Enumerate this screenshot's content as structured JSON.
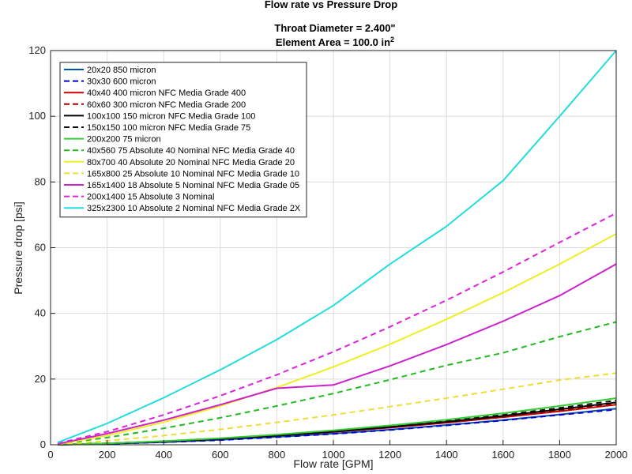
{
  "chart_data": {
    "type": "line",
    "title": "Flow rate vs Pressure Drop",
    "subtitle_line1": "Throat Diameter =  2.400\"",
    "subtitle_line2_prefix": "Element Area = 100.0 in",
    "subtitle_line2_sup": "2",
    "xlabel": "Flow rate [GPM]",
    "ylabel": "Pressure drop [psi]",
    "xlim": [
      0,
      2000
    ],
    "ylim": [
      0,
      120
    ],
    "xticks": [
      "0",
      "200",
      "400",
      "600",
      "800",
      "1000",
      "1200",
      "1400",
      "1600",
      "1800",
      "2000"
    ],
    "yticks": [
      "0",
      "20",
      "40",
      "60",
      "80",
      "100",
      "120"
    ],
    "grid": true,
    "legend_position": "top-left",
    "x": [
      25,
      200,
      400,
      600,
      800,
      1000,
      1200,
      1400,
      1600,
      1800,
      2000
    ],
    "series": [
      {
        "name": "20x20 850 micron",
        "color": "#0055aa",
        "style": "solid",
        "values": [
          0.02,
          0.3,
          0.8,
          1.5,
          2.4,
          3.4,
          4.6,
          6.0,
          7.5,
          9.2,
          11.0
        ]
      },
      {
        "name": "30x30 600 micron",
        "color": "#0000cc",
        "style": "dashed",
        "values": [
          0.02,
          0.3,
          0.8,
          1.4,
          2.3,
          3.3,
          4.5,
          5.9,
          7.4,
          9.1,
          10.7
        ]
      },
      {
        "name": "40x40 400 micron NFC Media Grade 400",
        "color": "#cc0000",
        "style": "solid",
        "values": [
          0.03,
          0.4,
          1.0,
          1.8,
          2.8,
          3.9,
          5.2,
          6.7,
          8.4,
          10.2,
          12.2
        ]
      },
      {
        "name": "60x60 300 micron NFC Media Grade 200",
        "color": "#aa0000",
        "style": "dashed",
        "values": [
          0.03,
          0.4,
          1.0,
          1.8,
          2.8,
          3.9,
          5.3,
          6.8,
          8.5,
          10.4,
          12.5
        ]
      },
      {
        "name": "100x100 150 micron NFC Media Grade 100",
        "color": "#000000",
        "style": "solid",
        "values": [
          0.03,
          0.4,
          1.0,
          1.8,
          2.8,
          4.0,
          5.4,
          7.0,
          8.8,
          10.8,
          12.9
        ]
      },
      {
        "name": "150x150 100 micron NFC Media Grade 75",
        "color": "#111111",
        "style": "dashed",
        "values": [
          0.03,
          0.4,
          1.0,
          1.9,
          2.9,
          4.1,
          5.6,
          7.2,
          9.1,
          11.2,
          13.5
        ]
      },
      {
        "name": "200x200 75 micron",
        "color": "#33cc33",
        "style": "solid",
        "values": [
          0.03,
          0.4,
          1.1,
          2.0,
          3.1,
          4.4,
          5.9,
          7.6,
          9.6,
          11.8,
          14.2
        ]
      },
      {
        "name": "40x560 75 Absolute 40 Nominal NFC Media Grade 40",
        "color": "#22bb22",
        "style": "dashed",
        "values": [
          0.2,
          2.2,
          5.0,
          8.2,
          11.8,
          15.6,
          19.8,
          24.2,
          28.0,
          32.9,
          37.4
        ]
      },
      {
        "name": "80x700 40 Absolute 20 Nominal NFC Media Grade 20",
        "color": "#eeee22",
        "style": "solid",
        "values": [
          0.2,
          2.8,
          6.9,
          11.8,
          17.4,
          23.7,
          30.6,
          38.2,
          46.3,
          55.0,
          64.2
        ]
      },
      {
        "name": "165x800 25 Absolute 10 Nominal NFC Media Grade 10",
        "color": "#eedd33",
        "style": "dashed",
        "values": [
          0.1,
          1.2,
          2.8,
          4.7,
          6.8,
          9.1,
          11.6,
          14.2,
          16.9,
          19.7,
          21.8
        ]
      },
      {
        "name": "165x1400 18 Absolute 5 Nominal NFC Media Grade 05",
        "color": "#cc22cc",
        "style": "solid",
        "values": [
          0.3,
          3.4,
          7.5,
          12.2,
          17.2,
          18.2,
          24.0,
          30.5,
          37.6,
          45.4,
          55.0
        ]
      },
      {
        "name": "200x1400 15 Absolute 3 Nominal",
        "color": "#dd22dd",
        "style": "dashed",
        "values": [
          0.4,
          4.0,
          9.1,
          14.9,
          21.3,
          28.3,
          35.9,
          44.0,
          52.6,
          61.6,
          70.5
        ]
      },
      {
        "name": "325x2300 10 Absolute 2 Nominal NFC Media Grade 2X",
        "color": "#22dddd",
        "style": "solid",
        "values": [
          0.7,
          6.5,
          14.3,
          22.8,
          32.0,
          42.4,
          55.0,
          66.5,
          80.4,
          100.0,
          120.0
        ]
      }
    ]
  }
}
